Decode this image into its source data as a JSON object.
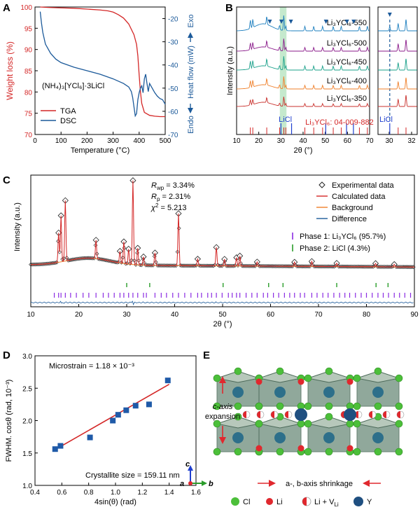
{
  "panels": {
    "A": "A",
    "B": "B",
    "C": "C",
    "D": "D",
    "E": "E"
  },
  "colors": {
    "tga": "#d42727",
    "dsc": "#1c5a9a",
    "series": [
      "#1d7fbf",
      "#8a1a8a",
      "#19a08a",
      "#ef7f2a",
      "#c9302c"
    ],
    "phase1": "#8a2be2",
    "phase2": "#2a9d2a",
    "diff": "#1c5a9a",
    "fit": "#d42727",
    "highlight": "#b6e3c0"
  },
  "chart_data": [
    {
      "panel": "A",
      "type": "line",
      "xlabel": "Temperature (°C)",
      "ylabel_left": "Weight loss (%)",
      "ylabel_right": "Heat flow (mW)",
      "exo_label": "Exo",
      "endo_label": "Endo",
      "compound_label": "(NH₄)₃[YCl₆]·3LiCl",
      "xlim": [
        0,
        500
      ],
      "ylim_left": [
        70,
        100
      ],
      "ylim_right": [
        -70,
        -15
      ],
      "xticks": [
        0,
        100,
        200,
        300,
        400,
        500
      ],
      "yticks_left": [
        70,
        75,
        80,
        85,
        90,
        95,
        100
      ],
      "yticks_right": [
        -70,
        -60,
        -50,
        -40,
        -30,
        -20
      ],
      "series": [
        {
          "name": "TGA",
          "axis": "left",
          "x": [
            20,
            50,
            100,
            150,
            200,
            250,
            280,
            300,
            320,
            340,
            360,
            380,
            390,
            395,
            400,
            405,
            410,
            420,
            440,
            460,
            480,
            500
          ],
          "y": [
            100,
            99.9,
            99.8,
            99.7,
            99.5,
            99.3,
            99.1,
            98.8,
            98.2,
            97.4,
            96.0,
            93.5,
            91.2,
            88.5,
            84.0,
            80.0,
            77.3,
            75.2,
            74.5,
            74.3,
            74.2,
            74.2
          ]
        },
        {
          "name": "DSC",
          "axis": "right",
          "x": [
            20,
            25,
            30,
            40,
            60,
            80,
            100,
            150,
            200,
            250,
            300,
            340,
            360,
            370,
            375,
            380,
            385,
            390,
            395,
            400,
            405,
            410,
            415,
            420,
            425,
            430,
            435,
            440,
            450,
            460,
            470,
            480,
            490,
            500
          ],
          "y": [
            -17,
            -22,
            -26,
            -31,
            -35,
            -37.5,
            -39,
            -41,
            -42.5,
            -44,
            -46,
            -48,
            -49.5,
            -51.5,
            -54,
            -58,
            -62,
            -61,
            -55,
            -52,
            -50,
            -49,
            -52,
            -46,
            -44,
            -48,
            -51.5,
            -48,
            -50,
            -52,
            -53.5,
            -54.5,
            -55,
            -57
          ]
        }
      ],
      "legend": [
        "TGA",
        "DSC"
      ]
    },
    {
      "panel": "B",
      "type": "line",
      "xlabel": "2θ (°)",
      "ylabel": "Intensity (a.u.)",
      "xlim": [
        10,
        70
      ],
      "xticks": [
        10,
        20,
        30,
        40,
        50,
        60,
        70
      ],
      "inset_xlim": [
        29,
        32.5
      ],
      "inset_xticks": [
        30,
        32
      ],
      "highlight_range": [
        29.5,
        32.5
      ],
      "series_names": [
        "Li₃YCl₆-550",
        "Li₃YCl₆-500",
        "Li₃YCl₆-450",
        "Li₃YCl₆-400",
        "Li₃YCl₆-350"
      ],
      "reference_label": "Li₃YCl₆: 04-009-882",
      "licl_label": "LiCl",
      "licl_marker_x": [
        25,
        30.2,
        34.5,
        50.3,
        59.8,
        62.8
      ],
      "ref_peaks": [
        16.2,
        17.3,
        23.6,
        29.4,
        31.3,
        32.2,
        40.8,
        44.8,
        48.8,
        53.6,
        57.2,
        65.4,
        69.0
      ],
      "licl_peaks": [
        30.0,
        34.8,
        50.2,
        59.6,
        62.7
      ],
      "inset_licl_x": 30.05,
      "inset_ref_peaks": [
        30.8,
        31.5
      ]
    },
    {
      "panel": "C",
      "type": "scatter",
      "xlabel": "2θ (°)",
      "ylabel": "Intensity (a.u.)",
      "xlim": [
        10,
        90
      ],
      "xticks": [
        10,
        20,
        30,
        40,
        50,
        60,
        70,
        80,
        90
      ],
      "stats": [
        "R",
        "wp",
        " = 3.34%",
        "R",
        "p",
        " = 2.31%",
        "χ",
        "2",
        " = 5.213"
      ],
      "legend": [
        "Experimental data",
        "Calculated data",
        "Background",
        "Difference"
      ],
      "phases": [
        "Phase 1: Li₃YCl₆ (95.7%)",
        "Phase 2: LiCl (4.3%)"
      ],
      "peaks": [
        {
          "x": 15.8,
          "h": 0.35
        },
        {
          "x": 16.3,
          "h": 0.55
        },
        {
          "x": 17.2,
          "h": 0.72
        },
        {
          "x": 23.6,
          "h": 0.22
        },
        {
          "x": 28.6,
          "h": 0.14
        },
        {
          "x": 29.4,
          "h": 0.26
        },
        {
          "x": 30.4,
          "h": 0.18
        },
        {
          "x": 31.3,
          "h": 1.0
        },
        {
          "x": 32.3,
          "h": 0.2
        },
        {
          "x": 33.5,
          "h": 0.1
        },
        {
          "x": 35.9,
          "h": 0.15
        },
        {
          "x": 40.8,
          "h": 0.62
        },
        {
          "x": 44.8,
          "h": 0.08
        },
        {
          "x": 48.7,
          "h": 0.22
        },
        {
          "x": 50.4,
          "h": 0.08
        },
        {
          "x": 52.9,
          "h": 0.1
        },
        {
          "x": 53.6,
          "h": 0.12
        },
        {
          "x": 57.2,
          "h": 0.05
        },
        {
          "x": 65.0,
          "h": 0.05
        },
        {
          "x": 68.6,
          "h": 0.06
        },
        {
          "x": 73.8,
          "h": 0.04
        },
        {
          "x": 81.9,
          "h": 0.04
        },
        {
          "x": 85.8,
          "h": 0.03
        }
      ],
      "phase1_ticks": [
        14.9,
        15.8,
        16.3,
        17.2,
        18.3,
        19.5,
        20.9,
        22.1,
        23.6,
        25.1,
        26.2,
        27.4,
        28.6,
        29.4,
        30.4,
        31.3,
        32.3,
        33.5,
        34.1,
        35.9,
        37.2,
        38.3,
        39.6,
        40.8,
        42.1,
        43.4,
        44.8,
        45.6,
        46.9,
        47.7,
        48.7,
        49.9,
        51.2,
        52.0,
        52.9,
        53.6,
        54.9,
        56.1,
        57.2,
        58.5,
        59.4,
        60.6,
        61.7,
        62.9,
        64.0,
        65.0,
        66.2,
        67.1,
        68.6,
        69.7,
        70.9,
        72.0,
        73.2,
        74.4,
        75.5,
        76.5,
        77.7,
        78.9,
        80.0,
        81.2,
        82.4,
        83.5,
        84.6,
        85.8,
        86.9,
        88.0,
        89.2
      ],
      "phase2_ticks": [
        30.0,
        34.8,
        50.1,
        59.6,
        62.6,
        73.8,
        82.0,
        84.5
      ]
    },
    {
      "panel": "D",
      "type": "scatter",
      "xlabel": "4sin(θ) (rad)",
      "ylabel": "FWHM. cosθ (rad, 10⁻³)",
      "xlim": [
        0.4,
        1.6
      ],
      "ylim": [
        1.0,
        3.0
      ],
      "xticks": [
        0.4,
        0.6,
        0.8,
        1.0,
        1.2,
        1.4,
        1.6
      ],
      "yticks": [
        1.0,
        1.5,
        2.0,
        2.5,
        3.0
      ],
      "points": [
        {
          "x": 0.55,
          "y": 1.56
        },
        {
          "x": 0.59,
          "y": 1.61
        },
        {
          "x": 0.81,
          "y": 1.74
        },
        {
          "x": 0.98,
          "y": 2.0
        },
        {
          "x": 1.02,
          "y": 2.09
        },
        {
          "x": 1.08,
          "y": 2.16
        },
        {
          "x": 1.15,
          "y": 2.23
        },
        {
          "x": 1.25,
          "y": 2.25
        },
        {
          "x": 1.39,
          "y": 2.62
        }
      ],
      "fit": {
        "x": [
          0.54,
          1.4
        ],
        "y": [
          1.54,
          2.56
        ]
      },
      "microstrain_label": "Microstrain = 1.18 × 10⁻³",
      "crystallite_label": "Crystallite size = 159.11 nm"
    }
  ],
  "panel_e": {
    "c_axis_label": "c-axis",
    "expansion_label": "expansion",
    "shrinkage_label": "a-, b-axis shrinkage",
    "axis_a": "a",
    "axis_b": "b",
    "axis_c": "c",
    "legend": [
      {
        "name": "Cl",
        "color": "#4cbf3a"
      },
      {
        "name": "Li",
        "color": "#e0282e"
      },
      {
        "name": "Li + V",
        "sub": "Li",
        "color": "#e0282e"
      },
      {
        "name": "Y",
        "color": "#1f4f80"
      }
    ]
  }
}
